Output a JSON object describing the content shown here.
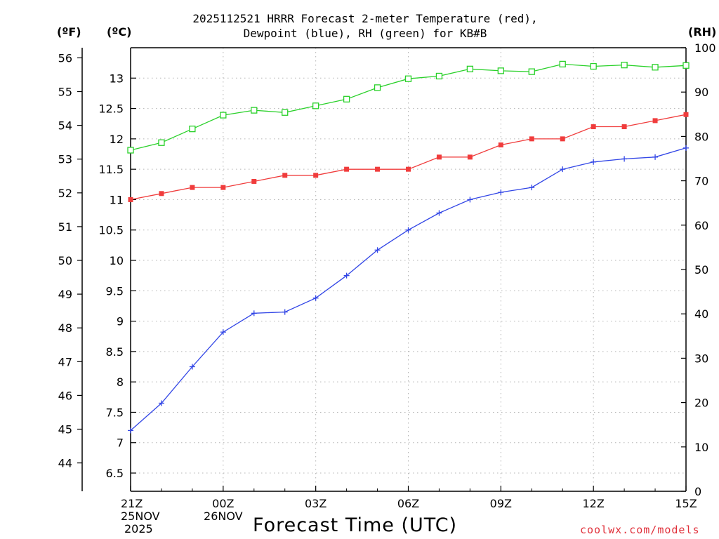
{
  "chart_data": {
    "type": "line",
    "title_lines": [
      "2025112521 HRRR Forecast 2-meter Temperature (red),",
      "Dewpoint (blue), RH (green) for KB#B"
    ],
    "xlabel": "Forecast Time (UTC)",
    "left_outer_unit": "(ºF)",
    "left_inner_unit": "(ºC)",
    "right_unit": "(RH)",
    "credit": "coolwx.com/models",
    "x_hours": [
      0,
      1,
      2,
      3,
      4,
      5,
      6,
      7,
      8,
      9,
      10,
      11,
      12,
      13,
      14,
      15,
      16,
      17,
      18
    ],
    "x_ticks": [
      {
        "hour": 0,
        "label": "21Z",
        "line2": "25NOV",
        "line3": "2025"
      },
      {
        "hour": 3,
        "label": "00Z",
        "line2": "26NOV",
        "line3": ""
      },
      {
        "hour": 6,
        "label": "03Z",
        "line2": "",
        "line3": ""
      },
      {
        "hour": 9,
        "label": "06Z",
        "line2": "",
        "line3": ""
      },
      {
        "hour": 12,
        "label": "09Z",
        "line2": "",
        "line3": ""
      },
      {
        "hour": 15,
        "label": "12Z",
        "line2": "",
        "line3": ""
      },
      {
        "hour": 18,
        "label": "15Z",
        "line2": "",
        "line3": ""
      }
    ],
    "celsius_range": [
      6.2,
      13.5
    ],
    "celsius_ticks": [
      "6.5",
      "7",
      "7.5",
      "8",
      "8.5",
      "9",
      "9.5",
      "10",
      "10.5",
      "11",
      "11.5",
      "12",
      "12.5",
      "13"
    ],
    "fahrenheit_ticks": [
      "44",
      "45",
      "46",
      "47",
      "48",
      "49",
      "50",
      "51",
      "52",
      "53",
      "54",
      "55",
      "56"
    ],
    "rh_range": [
      0,
      100
    ],
    "rh_ticks": [
      "0",
      "10",
      "20",
      "30",
      "40",
      "50",
      "60",
      "70",
      "80",
      "90",
      "100"
    ],
    "series": [
      {
        "name": "Temperature",
        "axis": "celsius",
        "color": "#f03c3c",
        "marker": "filled-square",
        "values": [
          11.0,
          11.1,
          11.2,
          11.2,
          11.3,
          11.4,
          11.4,
          11.5,
          11.5,
          11.5,
          11.7,
          11.7,
          11.9,
          12.0,
          12.0,
          12.2,
          12.2,
          12.3,
          12.4
        ]
      },
      {
        "name": "Dewpoint",
        "axis": "celsius",
        "color": "#3246e6",
        "marker": "plus",
        "values": [
          7.2,
          7.65,
          8.25,
          8.82,
          9.13,
          9.15,
          9.38,
          9.75,
          10.17,
          10.5,
          10.78,
          11.0,
          11.12,
          11.2,
          11.5,
          11.62,
          11.67,
          11.7,
          11.85
        ]
      },
      {
        "name": "RH",
        "axis": "rh",
        "color": "#2ad12a",
        "marker": "open-square",
        "values": [
          76.9,
          78.6,
          81.7,
          84.8,
          85.9,
          85.4,
          86.9,
          88.4,
          91.0,
          93.0,
          93.6,
          95.2,
          94.8,
          94.6,
          96.3,
          95.8,
          96.1,
          95.6,
          96.0
        ]
      }
    ]
  }
}
